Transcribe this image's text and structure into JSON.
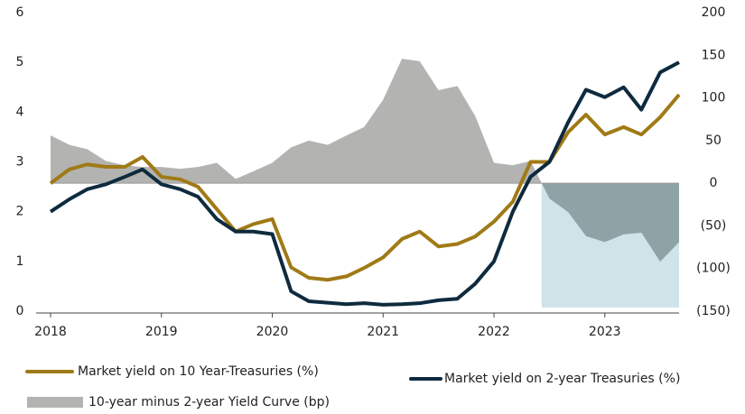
{
  "chart_data": {
    "type": "line",
    "x": [
      2018.0,
      2018.17,
      2018.33,
      2018.5,
      2018.67,
      2018.83,
      2019.0,
      2019.17,
      2019.33,
      2019.5,
      2019.67,
      2019.83,
      2020.0,
      2020.17,
      2020.33,
      2020.5,
      2020.67,
      2020.83,
      2021.0,
      2021.17,
      2021.33,
      2021.5,
      2021.67,
      2021.83,
      2022.0,
      2022.17,
      2022.33,
      2022.5,
      2022.67,
      2022.83,
      2023.0,
      2023.17,
      2023.33,
      2023.5,
      2023.67
    ],
    "xlim": [
      2018,
      2023.67
    ],
    "xticks": [
      2018,
      2019,
      2020,
      2021,
      2022,
      2023
    ],
    "ylim": [
      0,
      6
    ],
    "yticks": [
      0,
      1,
      2,
      3,
      4,
      5,
      6
    ],
    "y2lim": [
      -150,
      200
    ],
    "y2ticks": [
      {
        "value": -150,
        "label": "(150)"
      },
      {
        "value": -100,
        "label": "(100)"
      },
      {
        "value": -50,
        "label": "(50)"
      },
      0,
      50,
      100,
      150,
      200
    ],
    "series": [
      {
        "name": "10-year minus 2-year Yield Curve (bp)",
        "type": "area",
        "axis": "y2",
        "color": "#b3b3b1",
        "negative_color": "#8ea3a5",
        "values": [
          56,
          45,
          40,
          26,
          21,
          19,
          19,
          17,
          19,
          24,
          5,
          14,
          24,
          42,
          50,
          45,
          56,
          66,
          98,
          146,
          143,
          109,
          114,
          79,
          24,
          21,
          26,
          -18,
          -34,
          -62,
          -69,
          -60,
          -58,
          -92,
          -69
        ]
      },
      {
        "name": "Market yield on 10 Year-Treasuries (%)",
        "type": "line",
        "color": "#a07a16",
        "values": [
          2.57,
          2.85,
          2.95,
          2.9,
          2.9,
          3.1,
          2.7,
          2.65,
          2.5,
          2.05,
          1.6,
          1.75,
          1.85,
          0.88,
          0.67,
          0.63,
          0.7,
          0.87,
          1.08,
          1.45,
          1.6,
          1.3,
          1.35,
          1.5,
          1.8,
          2.2,
          3.0,
          3.0,
          3.6,
          3.95,
          3.55,
          3.7,
          3.55,
          3.9,
          4.35
        ]
      },
      {
        "name": "Market yield on 2-year Treasuries (%)",
        "type": "line",
        "color": "#0e2a3e",
        "values": [
          2.0,
          2.25,
          2.45,
          2.55,
          2.7,
          2.85,
          2.55,
          2.45,
          2.3,
          1.85,
          1.6,
          1.6,
          1.55,
          0.4,
          0.2,
          0.17,
          0.14,
          0.16,
          0.13,
          0.14,
          0.16,
          0.22,
          0.25,
          0.55,
          1.0,
          2.0,
          2.7,
          3.0,
          3.8,
          4.45,
          4.3,
          4.5,
          4.05,
          4.8,
          5.0
        ]
      }
    ],
    "inversion_shade_color": "#cfe4e9"
  }
}
